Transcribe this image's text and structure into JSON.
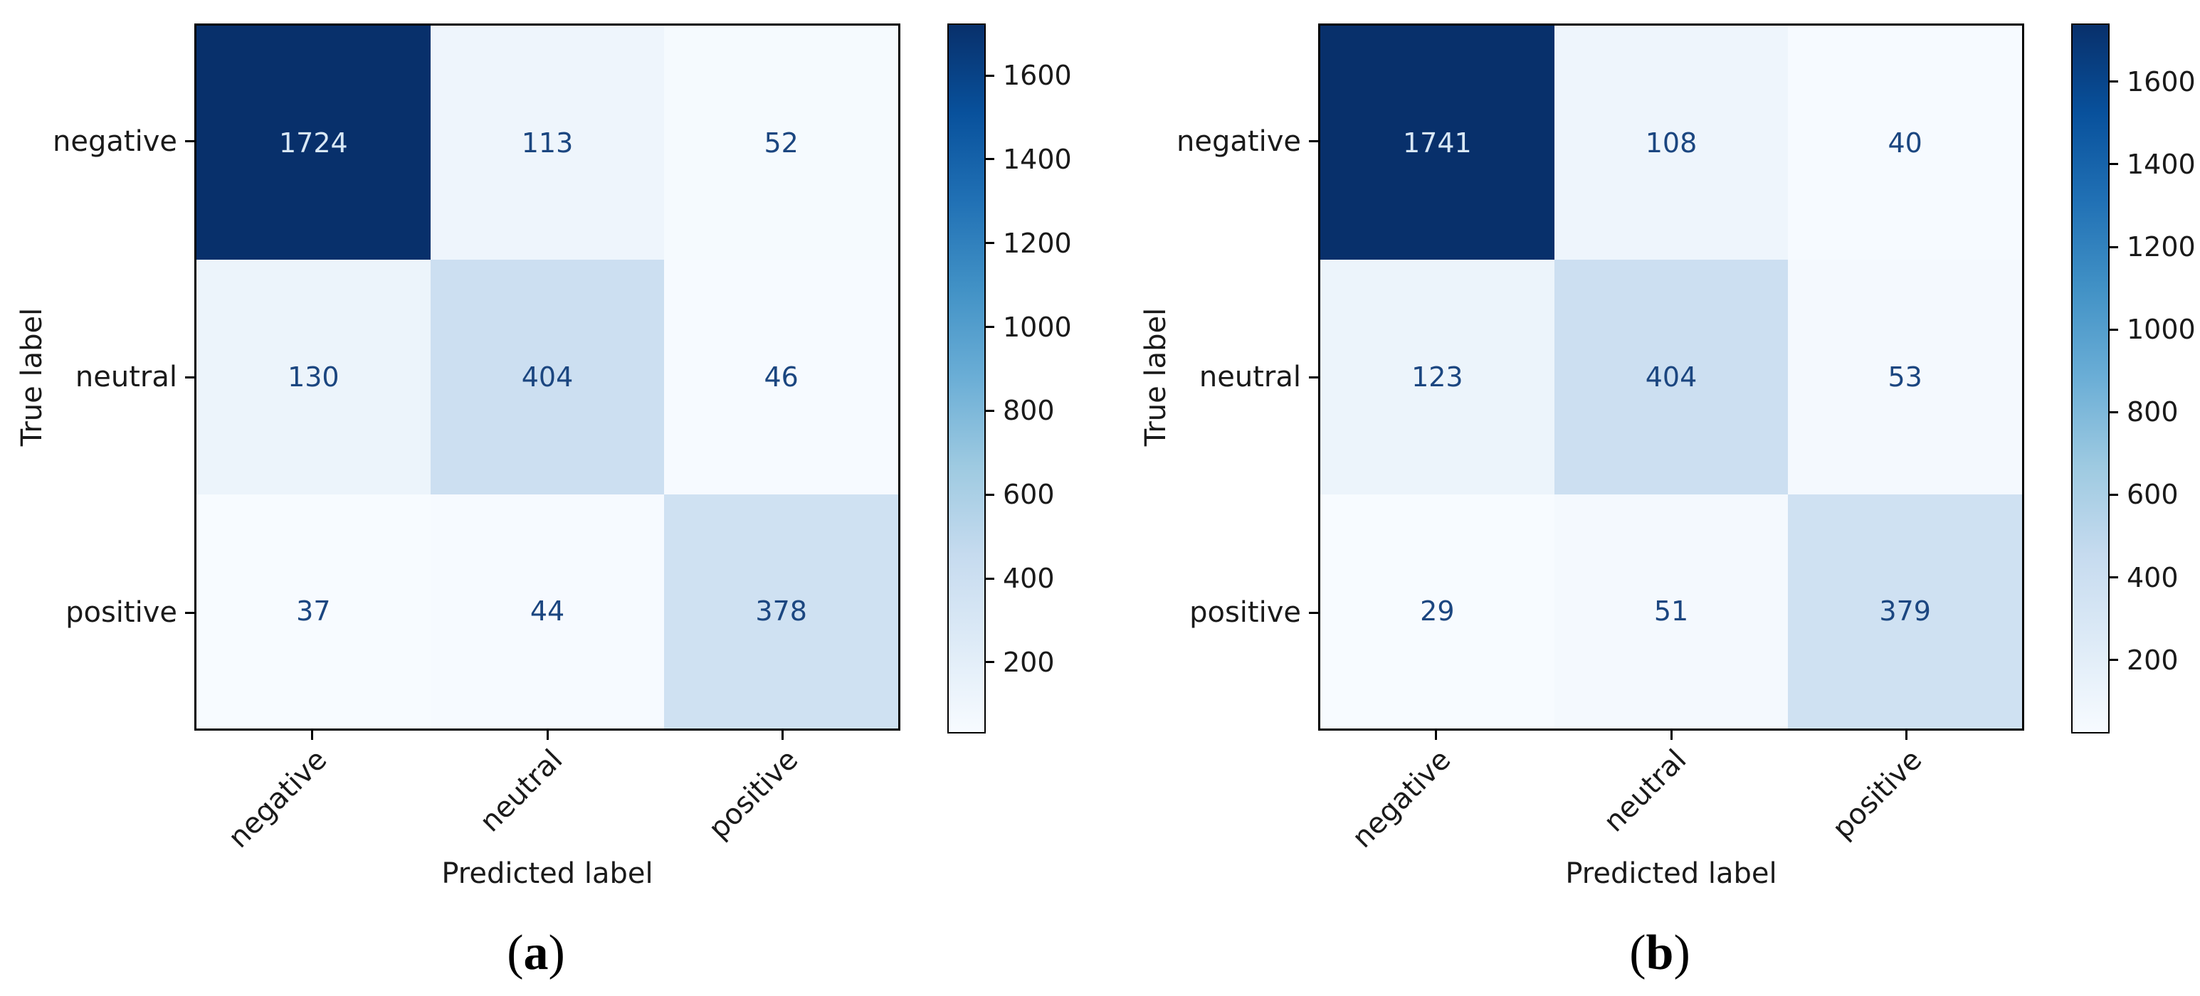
{
  "page": {
    "background": "#ffffff"
  },
  "colors": {
    "colormap_name": "Blues",
    "colormap_stops": [
      "#f7fbff",
      "#deebf7",
      "#c6dbef",
      "#9ecae1",
      "#6baed6",
      "#4292c6",
      "#2171b5",
      "#08519c",
      "#08306b"
    ],
    "cell_text_dark": "#1b4680",
    "cell_text_light": "#d9e8f5",
    "axis_text": "#1a1a1a",
    "spine": "#000000"
  },
  "chart_data": [
    {
      "type": "heatmap",
      "caption": "(a)",
      "caption_open": "(",
      "caption_letter": "a",
      "caption_close": ")",
      "xlabel": "Predicted label",
      "ylabel": "True label",
      "x_tick_labels": [
        "negative",
        "neutral",
        "positive"
      ],
      "y_tick_labels": [
        "negative",
        "neutral",
        "positive"
      ],
      "matrix": [
        [
          1724,
          113,
          52
        ],
        [
          130,
          404,
          46
        ],
        [
          37,
          44,
          378
        ]
      ],
      "vmin": 37,
      "vmax": 1724,
      "colorbar_ticks": [
        200,
        400,
        600,
        800,
        1000,
        1200,
        1400,
        1600
      ],
      "legend_position": "right-colorbar",
      "grid": false
    },
    {
      "type": "heatmap",
      "caption": "(b)",
      "caption_open": "(",
      "caption_letter": "b",
      "caption_close": ")",
      "xlabel": "Predicted label",
      "ylabel": "True label",
      "x_tick_labels": [
        "negative",
        "neutral",
        "positive"
      ],
      "y_tick_labels": [
        "negative",
        "neutral",
        "positive"
      ],
      "matrix": [
        [
          1741,
          108,
          40
        ],
        [
          123,
          404,
          53
        ],
        [
          29,
          51,
          379
        ]
      ],
      "vmin": 29,
      "vmax": 1741,
      "colorbar_ticks": [
        200,
        400,
        600,
        800,
        1000,
        1200,
        1400,
        1600
      ],
      "legend_position": "right-colorbar",
      "grid": false
    }
  ]
}
